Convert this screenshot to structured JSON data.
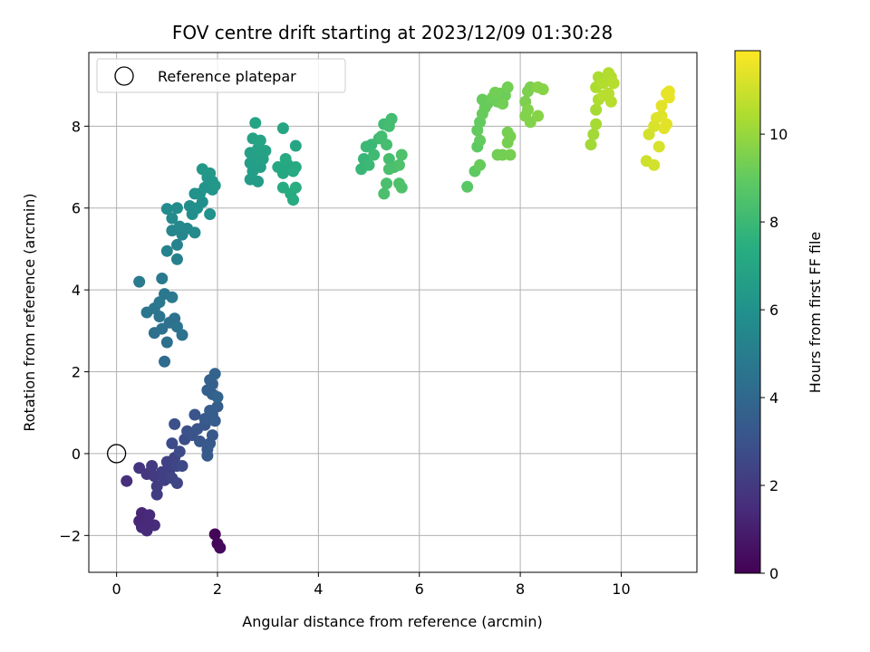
{
  "chart_data": {
    "type": "scatter",
    "title": "FOV centre drift starting at 2023/12/09 01:30:28",
    "xlabel": "Angular distance from reference (arcmin)",
    "ylabel": "Rotation from reference (arcmin)",
    "xlim": [
      -0.55,
      11.5
    ],
    "ylim": [
      -2.9,
      9.8
    ],
    "xticks": [
      0,
      2,
      4,
      6,
      8,
      10
    ],
    "yticks": [
      -2,
      0,
      2,
      4,
      6,
      8
    ],
    "grid": true,
    "legend": {
      "placement": "top-left",
      "entries": [
        "Reference platepar"
      ]
    },
    "reference_point": {
      "x": 0,
      "y": 0
    },
    "colorbar": {
      "label": "Hours from first FF file",
      "cmap": "viridis",
      "range": [
        0,
        11.9
      ],
      "ticks": [
        0,
        2,
        4,
        6,
        8,
        10
      ]
    },
    "points": [
      {
        "x": 1.95,
        "y": -1.97,
        "c": 0.1
      },
      {
        "x": 2.0,
        "y": -2.2,
        "c": 0.2
      },
      {
        "x": 2.05,
        "y": -2.3,
        "c": 0.3
      },
      {
        "x": 0.5,
        "y": -1.45,
        "c": 1.3
      },
      {
        "x": 0.45,
        "y": -1.65,
        "c": 1.3
      },
      {
        "x": 0.5,
        "y": -1.8,
        "c": 1.4
      },
      {
        "x": 0.65,
        "y": -1.5,
        "c": 1.4
      },
      {
        "x": 0.6,
        "y": -1.88,
        "c": 1.5
      },
      {
        "x": 0.75,
        "y": -1.75,
        "c": 1.5
      },
      {
        "x": 0.62,
        "y": -1.7,
        "c": 1.4
      },
      {
        "x": 0.2,
        "y": -0.67,
        "c": 1.6
      },
      {
        "x": 0.45,
        "y": -0.35,
        "c": 1.8
      },
      {
        "x": 0.6,
        "y": -0.5,
        "c": 1.9
      },
      {
        "x": 0.7,
        "y": -0.3,
        "c": 2.0
      },
      {
        "x": 0.75,
        "y": -0.55,
        "c": 2.0
      },
      {
        "x": 0.8,
        "y": -0.8,
        "c": 2.1
      },
      {
        "x": 0.8,
        "y": -1.0,
        "c": 2.1
      },
      {
        "x": 0.9,
        "y": -0.45,
        "c": 2.2
      },
      {
        "x": 0.95,
        "y": -0.65,
        "c": 2.2
      },
      {
        "x": 1.0,
        "y": -0.2,
        "c": 2.3
      },
      {
        "x": 1.05,
        "y": -0.4,
        "c": 2.3
      },
      {
        "x": 1.1,
        "y": -0.6,
        "c": 2.4
      },
      {
        "x": 1.15,
        "y": -0.1,
        "c": 2.4
      },
      {
        "x": 1.2,
        "y": -0.3,
        "c": 2.5
      },
      {
        "x": 1.2,
        "y": -0.72,
        "c": 2.5
      },
      {
        "x": 1.3,
        "y": -0.3,
        "c": 2.6
      },
      {
        "x": 1.1,
        "y": 0.25,
        "c": 2.7
      },
      {
        "x": 1.25,
        "y": 0.05,
        "c": 2.7
      },
      {
        "x": 1.35,
        "y": 0.35,
        "c": 2.8
      },
      {
        "x": 1.4,
        "y": 0.55,
        "c": 2.9
      },
      {
        "x": 1.15,
        "y": 0.72,
        "c": 2.9
      },
      {
        "x": 1.5,
        "y": 0.45,
        "c": 3.0
      },
      {
        "x": 1.55,
        "y": 0.95,
        "c": 3.1
      },
      {
        "x": 1.6,
        "y": 0.6,
        "c": 3.1
      },
      {
        "x": 1.75,
        "y": 0.7,
        "c": 3.2
      },
      {
        "x": 1.65,
        "y": 0.3,
        "c": 3.2
      },
      {
        "x": 1.8,
        "y": 0.1,
        "c": 3.2
      },
      {
        "x": 1.8,
        "y": -0.05,
        "c": 3.3
      },
      {
        "x": 1.85,
        "y": 0.25,
        "c": 3.3
      },
      {
        "x": 1.9,
        "y": 0.45,
        "c": 3.3
      },
      {
        "x": 1.75,
        "y": 0.85,
        "c": 3.4
      },
      {
        "x": 1.9,
        "y": 0.95,
        "c": 3.4
      },
      {
        "x": 1.95,
        "y": 0.8,
        "c": 3.5
      },
      {
        "x": 2.0,
        "y": 1.15,
        "c": 3.5
      },
      {
        "x": 1.85,
        "y": 1.05,
        "c": 3.5
      },
      {
        "x": 1.8,
        "y": 1.55,
        "c": 3.6
      },
      {
        "x": 1.9,
        "y": 1.45,
        "c": 3.6
      },
      {
        "x": 1.9,
        "y": 1.7,
        "c": 3.7
      },
      {
        "x": 1.85,
        "y": 1.8,
        "c": 3.7
      },
      {
        "x": 1.95,
        "y": 1.95,
        "c": 3.8
      },
      {
        "x": 2.0,
        "y": 1.38,
        "c": 3.8
      },
      {
        "x": 0.95,
        "y": 2.25,
        "c": 4.2
      },
      {
        "x": 0.75,
        "y": 2.95,
        "c": 4.3
      },
      {
        "x": 1.0,
        "y": 2.72,
        "c": 4.3
      },
      {
        "x": 0.9,
        "y": 3.05,
        "c": 4.4
      },
      {
        "x": 1.05,
        "y": 3.2,
        "c": 4.4
      },
      {
        "x": 1.15,
        "y": 3.3,
        "c": 4.4
      },
      {
        "x": 1.2,
        "y": 3.1,
        "c": 4.5
      },
      {
        "x": 1.3,
        "y": 2.9,
        "c": 4.5
      },
      {
        "x": 0.85,
        "y": 3.35,
        "c": 4.5
      },
      {
        "x": 0.75,
        "y": 3.55,
        "c": 4.6
      },
      {
        "x": 0.6,
        "y": 3.45,
        "c": 4.6
      },
      {
        "x": 0.85,
        "y": 3.7,
        "c": 4.7
      },
      {
        "x": 0.95,
        "y": 3.9,
        "c": 4.7
      },
      {
        "x": 1.1,
        "y": 3.82,
        "c": 4.8
      },
      {
        "x": 0.9,
        "y": 4.28,
        "c": 4.8
      },
      {
        "x": 0.45,
        "y": 4.2,
        "c": 4.9
      },
      {
        "x": 1.2,
        "y": 4.75,
        "c": 5.2
      },
      {
        "x": 1.0,
        "y": 4.95,
        "c": 5.3
      },
      {
        "x": 1.2,
        "y": 5.1,
        "c": 5.3
      },
      {
        "x": 1.3,
        "y": 5.35,
        "c": 5.4
      },
      {
        "x": 1.1,
        "y": 5.45,
        "c": 5.4
      },
      {
        "x": 1.25,
        "y": 5.55,
        "c": 5.5
      },
      {
        "x": 1.4,
        "y": 5.5,
        "c": 5.5
      },
      {
        "x": 1.55,
        "y": 5.4,
        "c": 5.6
      },
      {
        "x": 1.1,
        "y": 5.75,
        "c": 5.6
      },
      {
        "x": 1.0,
        "y": 5.98,
        "c": 5.7
      },
      {
        "x": 1.2,
        "y": 6.0,
        "c": 5.7
      },
      {
        "x": 1.5,
        "y": 5.85,
        "c": 5.8
      },
      {
        "x": 1.45,
        "y": 6.05,
        "c": 5.8
      },
      {
        "x": 1.6,
        "y": 6.0,
        "c": 5.9
      },
      {
        "x": 1.7,
        "y": 6.15,
        "c": 5.9
      },
      {
        "x": 1.85,
        "y": 5.85,
        "c": 6.0
      },
      {
        "x": 1.65,
        "y": 6.35,
        "c": 6.0
      },
      {
        "x": 1.55,
        "y": 6.35,
        "c": 6.0
      },
      {
        "x": 1.75,
        "y": 6.5,
        "c": 6.1
      },
      {
        "x": 1.9,
        "y": 6.45,
        "c": 6.1
      },
      {
        "x": 1.9,
        "y": 6.65,
        "c": 6.2
      },
      {
        "x": 1.8,
        "y": 6.75,
        "c": 6.2
      },
      {
        "x": 1.7,
        "y": 6.95,
        "c": 6.3
      },
      {
        "x": 1.85,
        "y": 6.85,
        "c": 6.3
      },
      {
        "x": 1.95,
        "y": 6.55,
        "c": 6.3
      },
      {
        "x": 2.65,
        "y": 6.7,
        "c": 6.5
      },
      {
        "x": 2.8,
        "y": 6.65,
        "c": 6.5
      },
      {
        "x": 2.7,
        "y": 6.9,
        "c": 6.6
      },
      {
        "x": 2.85,
        "y": 7.0,
        "c": 6.6
      },
      {
        "x": 2.65,
        "y": 7.1,
        "c": 6.6
      },
      {
        "x": 2.75,
        "y": 7.25,
        "c": 6.7
      },
      {
        "x": 2.9,
        "y": 7.2,
        "c": 6.7
      },
      {
        "x": 2.65,
        "y": 7.35,
        "c": 6.7
      },
      {
        "x": 2.8,
        "y": 7.45,
        "c": 6.8
      },
      {
        "x": 2.95,
        "y": 7.4,
        "c": 6.8
      },
      {
        "x": 2.7,
        "y": 7.7,
        "c": 6.8
      },
      {
        "x": 2.85,
        "y": 7.65,
        "c": 6.9
      },
      {
        "x": 2.75,
        "y": 8.08,
        "c": 6.9
      },
      {
        "x": 3.3,
        "y": 7.95,
        "c": 7.0
      },
      {
        "x": 3.55,
        "y": 7.52,
        "c": 7.0
      },
      {
        "x": 3.2,
        "y": 7.0,
        "c": 7.1
      },
      {
        "x": 3.3,
        "y": 6.85,
        "c": 7.1
      },
      {
        "x": 3.4,
        "y": 7.05,
        "c": 7.1
      },
      {
        "x": 3.5,
        "y": 6.9,
        "c": 7.2
      },
      {
        "x": 3.35,
        "y": 7.2,
        "c": 7.2
      },
      {
        "x": 3.55,
        "y": 7.0,
        "c": 7.2
      },
      {
        "x": 3.3,
        "y": 6.5,
        "c": 7.3
      },
      {
        "x": 3.45,
        "y": 6.35,
        "c": 7.3
      },
      {
        "x": 3.5,
        "y": 6.2,
        "c": 7.3
      },
      {
        "x": 3.55,
        "y": 6.5,
        "c": 7.4
      },
      {
        "x": 4.85,
        "y": 6.95,
        "c": 7.9
      },
      {
        "x": 4.9,
        "y": 7.2,
        "c": 7.9
      },
      {
        "x": 5.0,
        "y": 7.05,
        "c": 8.0
      },
      {
        "x": 4.95,
        "y": 7.5,
        "c": 8.0
      },
      {
        "x": 5.05,
        "y": 7.55,
        "c": 8.0
      },
      {
        "x": 5.1,
        "y": 7.3,
        "c": 8.1
      },
      {
        "x": 5.2,
        "y": 7.7,
        "c": 8.1
      },
      {
        "x": 5.3,
        "y": 8.05,
        "c": 8.1
      },
      {
        "x": 5.25,
        "y": 7.75,
        "c": 8.2
      },
      {
        "x": 5.4,
        "y": 8.0,
        "c": 8.2
      },
      {
        "x": 5.45,
        "y": 8.18,
        "c": 8.2
      },
      {
        "x": 5.35,
        "y": 7.55,
        "c": 8.3
      },
      {
        "x": 5.4,
        "y": 7.2,
        "c": 8.3
      },
      {
        "x": 5.5,
        "y": 7.0,
        "c": 8.3
      },
      {
        "x": 5.4,
        "y": 6.95,
        "c": 8.4
      },
      {
        "x": 5.3,
        "y": 6.35,
        "c": 8.4
      },
      {
        "x": 5.35,
        "y": 6.6,
        "c": 8.4
      },
      {
        "x": 5.6,
        "y": 6.6,
        "c": 8.5
      },
      {
        "x": 5.65,
        "y": 6.5,
        "c": 8.5
      },
      {
        "x": 5.65,
        "y": 7.3,
        "c": 8.5
      },
      {
        "x": 5.6,
        "y": 7.05,
        "c": 8.5
      },
      {
        "x": 6.95,
        "y": 6.52,
        "c": 8.8
      },
      {
        "x": 7.1,
        "y": 6.9,
        "c": 8.9
      },
      {
        "x": 7.15,
        "y": 7.5,
        "c": 8.9
      },
      {
        "x": 7.2,
        "y": 7.65,
        "c": 9.0
      },
      {
        "x": 7.15,
        "y": 7.9,
        "c": 9.0
      },
      {
        "x": 7.2,
        "y": 8.1,
        "c": 9.0
      },
      {
        "x": 7.25,
        "y": 8.3,
        "c": 9.1
      },
      {
        "x": 7.3,
        "y": 8.45,
        "c": 9.1
      },
      {
        "x": 7.35,
        "y": 8.55,
        "c": 9.1
      },
      {
        "x": 7.25,
        "y": 8.65,
        "c": 9.1
      },
      {
        "x": 7.45,
        "y": 8.7,
        "c": 9.2
      },
      {
        "x": 7.55,
        "y": 8.6,
        "c": 9.2
      },
      {
        "x": 7.6,
        "y": 8.8,
        "c": 9.2
      },
      {
        "x": 7.7,
        "y": 8.75,
        "c": 9.2
      },
      {
        "x": 7.75,
        "y": 8.95,
        "c": 9.3
      },
      {
        "x": 7.65,
        "y": 8.55,
        "c": 9.3
      },
      {
        "x": 7.5,
        "y": 8.82,
        "c": 9.3
      },
      {
        "x": 7.2,
        "y": 7.05,
        "c": 9.1
      },
      {
        "x": 7.55,
        "y": 7.3,
        "c": 9.3
      },
      {
        "x": 7.65,
        "y": 7.3,
        "c": 9.3
      },
      {
        "x": 7.75,
        "y": 7.6,
        "c": 9.4
      },
      {
        "x": 7.8,
        "y": 7.75,
        "c": 9.4
      },
      {
        "x": 7.8,
        "y": 7.3,
        "c": 9.4
      },
      {
        "x": 7.75,
        "y": 7.85,
        "c": 9.4
      },
      {
        "x": 8.1,
        "y": 8.6,
        "c": 9.5
      },
      {
        "x": 8.15,
        "y": 8.85,
        "c": 9.5
      },
      {
        "x": 8.2,
        "y": 8.95,
        "c": 9.5
      },
      {
        "x": 8.15,
        "y": 8.4,
        "c": 9.6
      },
      {
        "x": 8.1,
        "y": 8.25,
        "c": 9.6
      },
      {
        "x": 8.2,
        "y": 8.1,
        "c": 9.6
      },
      {
        "x": 8.35,
        "y": 8.25,
        "c": 9.7
      },
      {
        "x": 8.35,
        "y": 8.95,
        "c": 9.7
      },
      {
        "x": 8.45,
        "y": 8.9,
        "c": 9.7
      },
      {
        "x": 9.4,
        "y": 7.55,
        "c": 10.2
      },
      {
        "x": 9.45,
        "y": 7.8,
        "c": 10.2
      },
      {
        "x": 9.5,
        "y": 8.05,
        "c": 10.3
      },
      {
        "x": 9.5,
        "y": 8.4,
        "c": 10.3
      },
      {
        "x": 9.55,
        "y": 8.65,
        "c": 10.4
      },
      {
        "x": 9.5,
        "y": 8.95,
        "c": 10.4
      },
      {
        "x": 9.55,
        "y": 9.2,
        "c": 10.4
      },
      {
        "x": 9.65,
        "y": 9.05,
        "c": 10.5
      },
      {
        "x": 9.75,
        "y": 9.3,
        "c": 10.5
      },
      {
        "x": 9.8,
        "y": 9.2,
        "c": 10.5
      },
      {
        "x": 9.85,
        "y": 9.05,
        "c": 10.6
      },
      {
        "x": 9.75,
        "y": 8.8,
        "c": 10.6
      },
      {
        "x": 9.65,
        "y": 8.75,
        "c": 10.6
      },
      {
        "x": 9.8,
        "y": 8.6,
        "c": 10.6
      },
      {
        "x": 10.5,
        "y": 7.15,
        "c": 11.0
      },
      {
        "x": 10.65,
        "y": 7.05,
        "c": 11.1
      },
      {
        "x": 10.55,
        "y": 7.8,
        "c": 11.1
      },
      {
        "x": 10.75,
        "y": 7.5,
        "c": 11.2
      },
      {
        "x": 10.65,
        "y": 8.0,
        "c": 11.2
      },
      {
        "x": 10.7,
        "y": 8.2,
        "c": 11.3
      },
      {
        "x": 10.8,
        "y": 8.25,
        "c": 11.3
      },
      {
        "x": 10.8,
        "y": 8.5,
        "c": 11.4
      },
      {
        "x": 10.85,
        "y": 7.95,
        "c": 11.4
      },
      {
        "x": 10.9,
        "y": 8.05,
        "c": 11.4
      },
      {
        "x": 10.9,
        "y": 8.8,
        "c": 11.5
      },
      {
        "x": 10.95,
        "y": 8.85,
        "c": 11.5
      },
      {
        "x": 10.95,
        "y": 8.7,
        "c": 11.5
      }
    ]
  }
}
